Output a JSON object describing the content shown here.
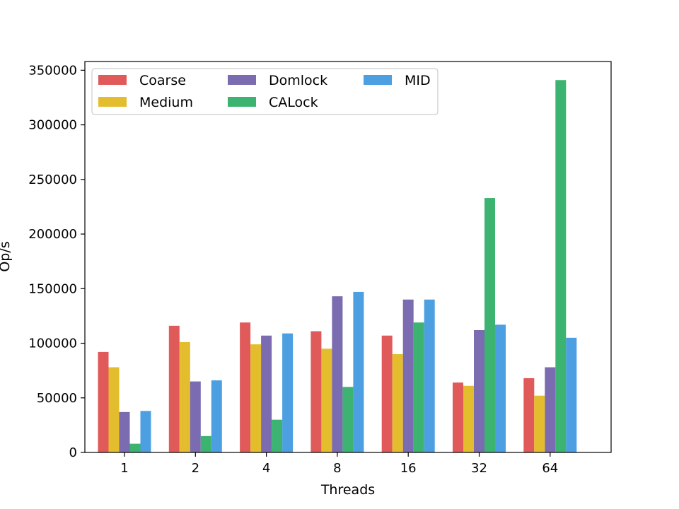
{
  "chart_data": {
    "type": "bar",
    "title": "",
    "xlabel": "Threads",
    "ylabel": "Op/s",
    "categories": [
      "1",
      "2",
      "4",
      "8",
      "16",
      "32",
      "64"
    ],
    "ylim": [
      0,
      358000
    ],
    "yticks": [
      0,
      50000,
      100000,
      150000,
      200000,
      250000,
      300000,
      350000
    ],
    "grid": false,
    "legend": {
      "placement": "top-left",
      "columns": 3
    },
    "series": [
      {
        "name": "Coarse",
        "color": "#e05a5a",
        "values": [
          92000,
          116000,
          119000,
          111000,
          107000,
          64000,
          68000
        ]
      },
      {
        "name": "Medium",
        "color": "#e3bd2d",
        "values": [
          78000,
          101000,
          99000,
          95000,
          90000,
          61000,
          52000
        ]
      },
      {
        "name": "Domlock",
        "color": "#7b6bb0",
        "values": [
          37000,
          65000,
          107000,
          143000,
          140000,
          112000,
          78000
        ]
      },
      {
        "name": "CALock",
        "color": "#3cb371",
        "values": [
          8000,
          15000,
          30000,
          60000,
          119000,
          233000,
          341000
        ]
      },
      {
        "name": "MID",
        "color": "#4c9fe0",
        "values": [
          38000,
          66000,
          109000,
          147000,
          140000,
          117000,
          105000
        ]
      }
    ]
  }
}
